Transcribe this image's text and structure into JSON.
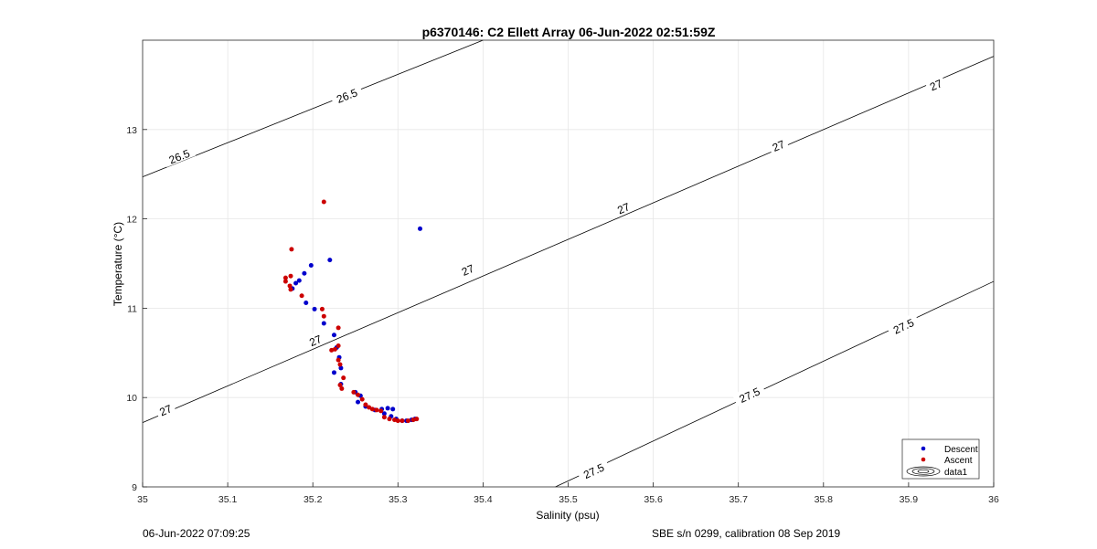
{
  "footer": {
    "timestamp": "06-Jun-2022 07:09:25",
    "instrument": "SBE s/n 0299, calibration 08 Sep 2019"
  },
  "chart_data": {
    "type": "scatter",
    "title": "p6370146: C2 Ellett Array 06-Jun-2022 02:51:59Z",
    "xlabel": "Salinity (psu)",
    "ylabel": "Temperature (°C)",
    "xlim": [
      35,
      36
    ],
    "ylim": [
      9,
      14
    ],
    "xticks": [
      35,
      35.1,
      35.2,
      35.3,
      35.4,
      35.5,
      35.6,
      35.7,
      35.8,
      35.9,
      36
    ],
    "xtick_labels": [
      "35",
      "35.1",
      "35.2",
      "35.3",
      "35.4",
      "35.5",
      "35.6",
      "35.7",
      "35.8",
      "35.9",
      "36"
    ],
    "yticks": [
      9,
      10,
      11,
      12,
      13
    ],
    "ytick_labels": [
      "9",
      "10",
      "11",
      "12",
      "13"
    ],
    "grid": true,
    "legend_position": "bottom-right",
    "series": [
      {
        "name": "Descent",
        "color": "#0000cc",
        "points": [
          [
            35.326,
            11.89
          ],
          [
            35.22,
            11.54
          ],
          [
            35.198,
            11.48
          ],
          [
            35.19,
            11.39
          ],
          [
            35.184,
            11.31
          ],
          [
            35.18,
            11.28
          ],
          [
            35.176,
            11.22
          ],
          [
            35.192,
            11.06
          ],
          [
            35.202,
            10.99
          ],
          [
            35.213,
            10.83
          ],
          [
            35.225,
            10.7
          ],
          [
            35.228,
            10.56
          ],
          [
            35.231,
            10.45
          ],
          [
            35.233,
            10.33
          ],
          [
            35.225,
            10.28
          ],
          [
            35.233,
            10.15
          ],
          [
            35.25,
            10.06
          ],
          [
            35.256,
            10.02
          ],
          [
            35.253,
            9.95
          ],
          [
            35.262,
            9.9
          ],
          [
            35.273,
            9.86
          ],
          [
            35.281,
            9.87
          ],
          [
            35.288,
            9.88
          ],
          [
            35.294,
            9.87
          ],
          [
            35.284,
            9.82
          ],
          [
            35.292,
            9.79
          ],
          [
            35.298,
            9.76
          ],
          [
            35.305,
            9.74
          ],
          [
            35.31,
            9.74
          ],
          [
            35.316,
            9.75
          ],
          [
            35.32,
            9.76
          ]
        ]
      },
      {
        "name": "Ascent",
        "color": "#cc0000",
        "points": [
          [
            35.213,
            12.19
          ],
          [
            35.175,
            11.66
          ],
          [
            35.168,
            11.34
          ],
          [
            35.174,
            11.36
          ],
          [
            35.168,
            11.3
          ],
          [
            35.173,
            11.25
          ],
          [
            35.174,
            11.21
          ],
          [
            35.187,
            11.14
          ],
          [
            35.211,
            10.99
          ],
          [
            35.213,
            10.91
          ],
          [
            35.23,
            10.78
          ],
          [
            35.23,
            10.58
          ],
          [
            35.226,
            10.54
          ],
          [
            35.222,
            10.53
          ],
          [
            35.23,
            10.42
          ],
          [
            35.232,
            10.37
          ],
          [
            35.236,
            10.22
          ],
          [
            35.232,
            10.14
          ],
          [
            35.234,
            10.1
          ],
          [
            35.248,
            10.06
          ],
          [
            35.253,
            10.03
          ],
          [
            35.258,
            9.98
          ],
          [
            35.262,
            9.92
          ],
          [
            35.266,
            9.89
          ],
          [
            35.27,
            9.87
          ],
          [
            35.275,
            9.86
          ],
          [
            35.28,
            9.85
          ],
          [
            35.284,
            9.78
          ],
          [
            35.29,
            9.76
          ],
          [
            35.296,
            9.75
          ],
          [
            35.3,
            9.74
          ],
          [
            35.305,
            9.74
          ],
          [
            35.312,
            9.74
          ],
          [
            35.318,
            9.75
          ],
          [
            35.322,
            9.76
          ]
        ]
      }
    ],
    "contours": [
      {
        "label": "26.5",
        "points": [
          [
            35,
            12.47
          ],
          [
            35.4,
            14.0
          ]
        ],
        "label_positions": [
          [
            35.043,
            12.7
          ],
          [
            35.24,
            13.38
          ]
        ]
      },
      {
        "label": "27",
        "points": [
          [
            35,
            9.72
          ],
          [
            36,
            13.82
          ]
        ],
        "label_positions": [
          [
            35.027,
            9.86
          ],
          [
            35.203,
            10.64
          ],
          [
            35.382,
            11.43
          ],
          [
            35.565,
            12.12
          ],
          [
            35.747,
            12.82
          ],
          [
            35.932,
            13.5
          ]
        ]
      },
      {
        "label": "27.5",
        "points": [
          [
            35.485,
            9.0
          ],
          [
            36,
            11.3
          ]
        ],
        "label_positions": [
          [
            35.53,
            9.18
          ],
          [
            35.713,
            10.03
          ],
          [
            35.894,
            10.8
          ]
        ]
      }
    ],
    "legend": {
      "entries": [
        "Descent",
        "Ascent",
        "data1"
      ]
    }
  }
}
